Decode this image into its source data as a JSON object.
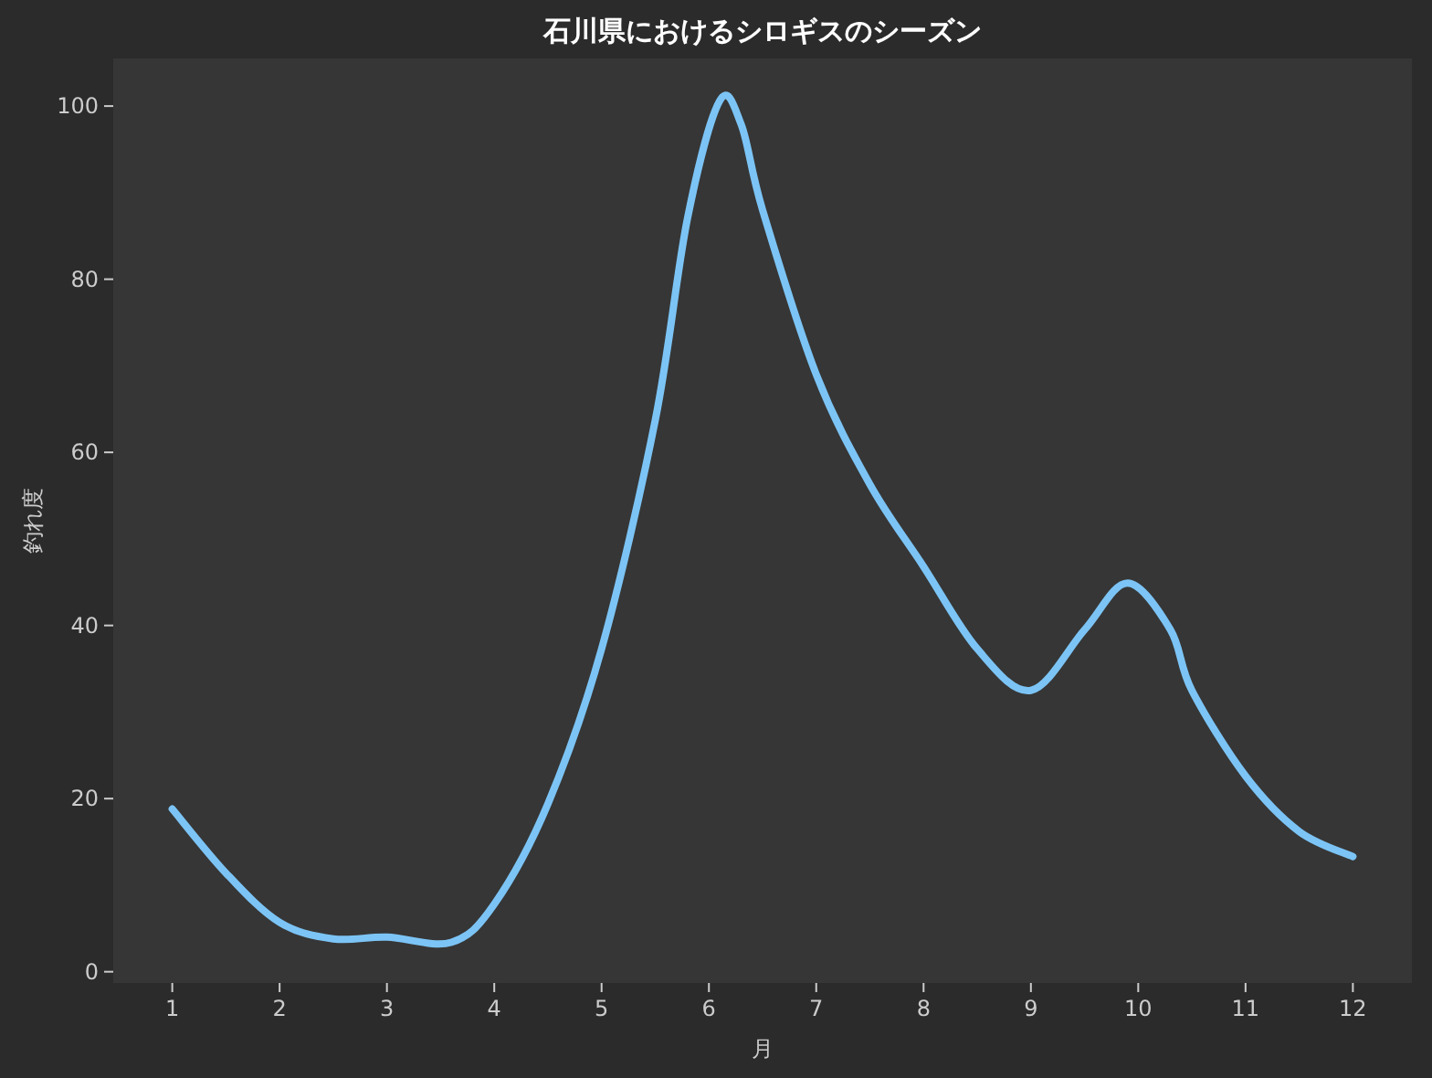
{
  "chart_data": {
    "type": "line",
    "title": "石川県におけるシロギスのシーズン",
    "xlabel": "月",
    "ylabel": "釣れ度",
    "x": [
      1,
      1.5,
      2,
      2.5,
      3,
      3.6,
      4,
      4.5,
      5,
      5.5,
      5.8,
      6.1,
      6.3,
      6.5,
      7,
      7.5,
      8,
      8.5,
      9,
      9.5,
      9.9,
      10.3,
      10.5,
      11,
      11.5,
      12
    ],
    "series": [
      {
        "color": "#7cc4f5",
        "values": [
          18.8,
          11.4,
          5.7,
          3.8,
          4.0,
          3.4,
          7.8,
          19.4,
          37.3,
          63.7,
          87,
          100.6,
          97.9,
          88,
          69,
          56.3,
          46.8,
          37.3,
          32.5,
          39.5,
          44.9,
          39.5,
          32.5,
          22.6,
          16.2,
          13.3
        ]
      }
    ],
    "xlim": [
      0.45,
      12.55
    ],
    "ylim": [
      -1.3,
      105.5
    ],
    "xticks": [
      1,
      2,
      3,
      4,
      5,
      6,
      7,
      8,
      9,
      10,
      11,
      12
    ],
    "yticks": [
      0,
      20,
      40,
      60,
      80,
      100
    ]
  }
}
